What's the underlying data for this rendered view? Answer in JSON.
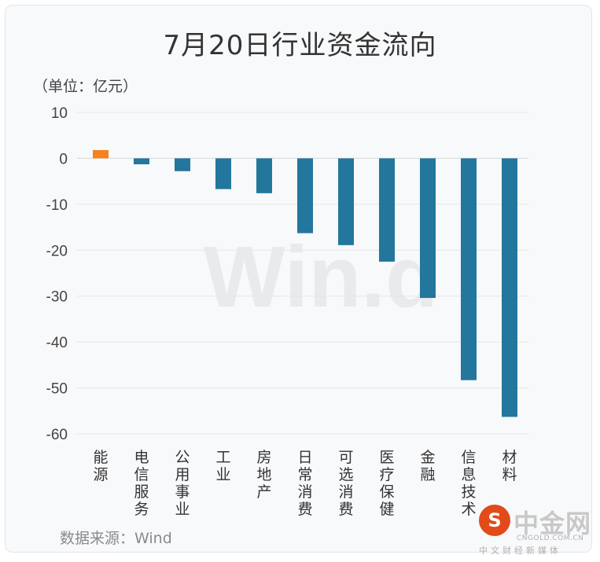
{
  "chart_data": {
    "type": "bar",
    "title": "7月20日行业资金流向",
    "unit_label": "（单位：亿元）",
    "categories": [
      "能源",
      "电信服务",
      "公用事业",
      "工业",
      "房地产",
      "日常消费",
      "可选消费",
      "医疗保健",
      "金融",
      "信息技术",
      "材料"
    ],
    "values": [
      1.8,
      -1.3,
      -2.8,
      -6.7,
      -7.6,
      -16.3,
      -18.9,
      -22.5,
      -30.4,
      -48.3,
      -56.3
    ],
    "y_ticks": [
      "10",
      "0",
      "-10",
      "-20",
      "-30",
      "-40",
      "-50",
      "-60"
    ],
    "ylim": [
      -60,
      10
    ],
    "grid": true,
    "colors": {
      "positive": "#f5821f",
      "negative": "#23769c"
    },
    "watermark": "Win.d",
    "source": "数据来源：Wind"
  },
  "logo": {
    "name": "中金网",
    "domain": "CNGOLD.COM.CN",
    "tagline": "中文财经新媒体",
    "color": "#e34a1a"
  }
}
